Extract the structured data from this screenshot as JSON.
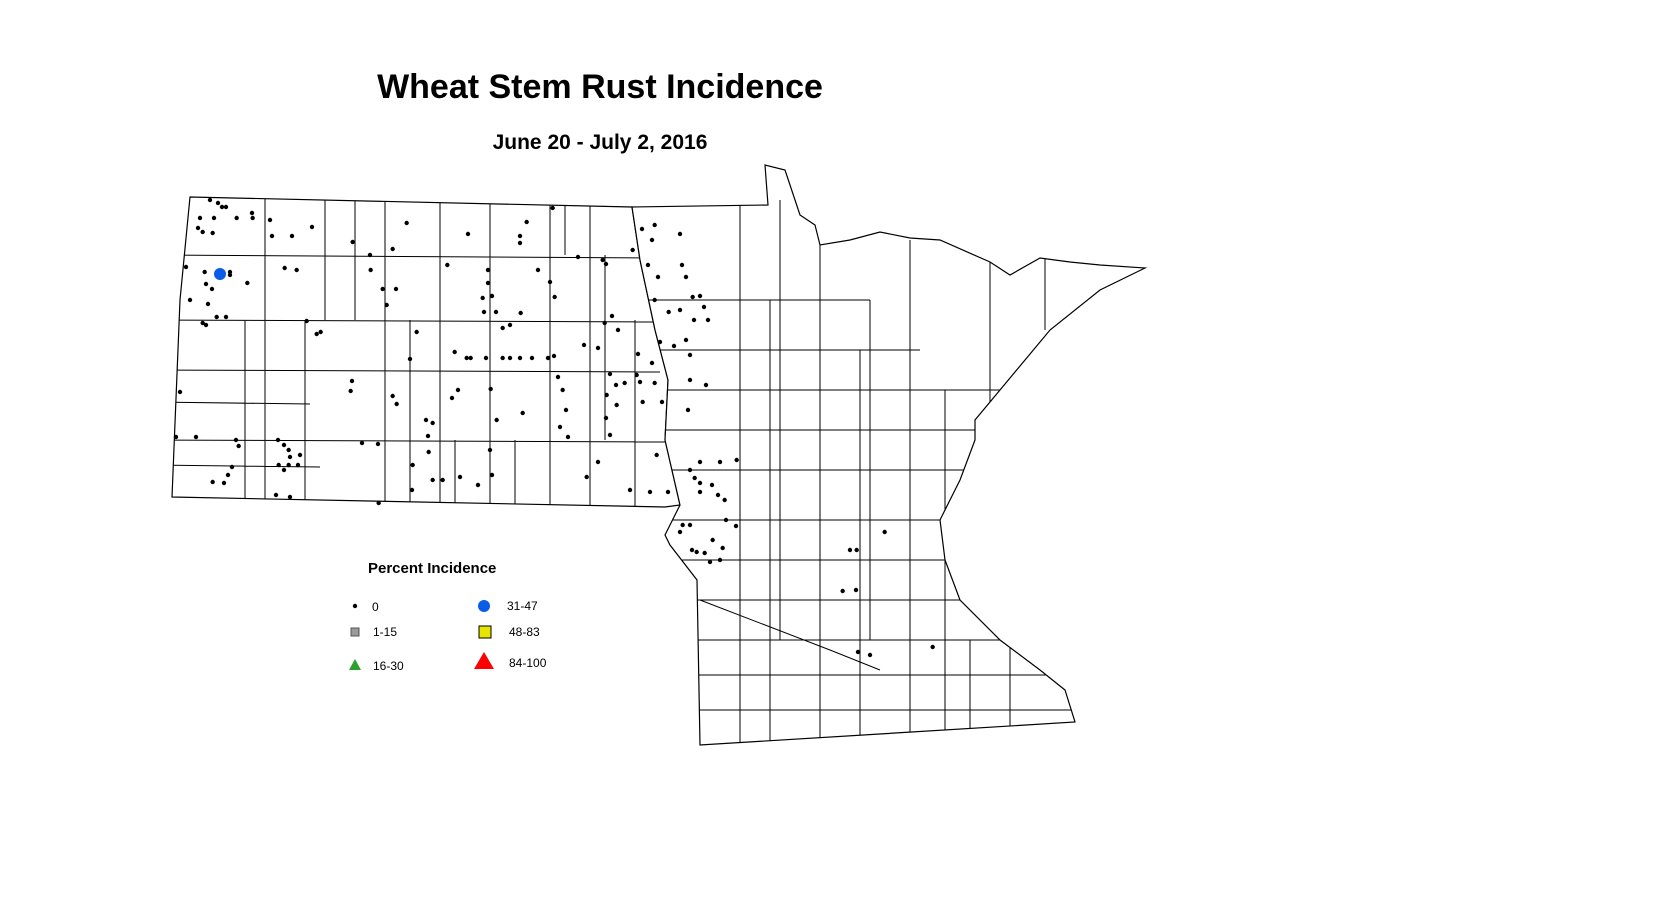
{
  "title": "Wheat Stem Rust Incidence",
  "subtitle": "June 20 - July 2, 2016",
  "legend": {
    "title": "Percent Incidence",
    "items": [
      {
        "label": "0",
        "symbol": "small-dot",
        "color": "#000000"
      },
      {
        "label": "1-15",
        "symbol": "square",
        "color": "#9a9a9a"
      },
      {
        "label": "16-30",
        "symbol": "triangle",
        "color": "#2ca02c"
      },
      {
        "label": "31-47",
        "symbol": "circle",
        "color": "#0a5ce6"
      },
      {
        "label": "48-83",
        "symbol": "square",
        "color": "#e6e600"
      },
      {
        "label": "84-100",
        "symbol": "triangle",
        "color": "#ff0000"
      }
    ]
  },
  "map": {
    "region": "North Dakota and Minnesota counties",
    "observations_0": [
      [
        -103.55,
        49.0
      ],
      [
        -103.43,
        48.97
      ],
      [
        -103.37,
        48.93
      ],
      [
        -103.31,
        48.93
      ],
      [
        -103.7,
        48.82
      ],
      [
        -103.49,
        48.82
      ],
      [
        -103.73,
        48.72
      ],
      [
        -103.66,
        48.68
      ],
      [
        -103.51,
        48.67
      ],
      [
        -103.15,
        48.82
      ],
      [
        -102.92,
        48.87
      ],
      [
        -102.91,
        48.82
      ],
      [
        -102.65,
        48.8
      ],
      [
        -102.62,
        48.64
      ],
      [
        -102.32,
        48.64
      ],
      [
        -102.02,
        48.73
      ],
      [
        -103.91,
        48.33
      ],
      [
        -103.63,
        48.28
      ],
      [
        -103.61,
        48.16
      ],
      [
        -103.52,
        48.11
      ],
      [
        -103.25,
        48.28
      ],
      [
        -102.99,
        48.17
      ],
      [
        -102.43,
        48.32
      ],
      [
        -102.25,
        48.3
      ],
      [
        -103.85,
        48.0
      ],
      [
        -103.58,
        47.96
      ],
      [
        -103.45,
        47.83
      ],
      [
        -103.31,
        47.83
      ],
      [
        -103.66,
        47.77
      ],
      [
        -103.61,
        47.75
      ],
      [
        -104.0,
        47.08
      ],
      [
        -104.06,
        46.63
      ],
      [
        -103.76,
        46.63
      ],
      [
        -103.16,
        46.6
      ],
      [
        -103.12,
        46.54
      ],
      [
        -103.22,
        46.33
      ],
      [
        -103.28,
        46.25
      ],
      [
        -103.34,
        46.17
      ],
      [
        -103.51,
        46.18
      ],
      [
        -102.53,
        46.6
      ],
      [
        -102.44,
        46.55
      ],
      [
        -102.37,
        46.5
      ],
      [
        -102.35,
        46.43
      ],
      [
        -102.2,
        46.45
      ],
      [
        -102.23,
        46.35
      ],
      [
        -102.37,
        46.35
      ],
      [
        -102.52,
        46.35
      ],
      [
        -102.44,
        46.3
      ],
      [
        -102.56,
        46.05
      ],
      [
        -102.35,
        46.03
      ],
      [
        -102.1,
        47.79
      ],
      [
        -101.95,
        47.66
      ],
      [
        -101.89,
        47.68
      ],
      [
        -101.41,
        48.58
      ],
      [
        -101.15,
        48.45
      ],
      [
        -101.14,
        48.3
      ],
      [
        -100.81,
        48.51
      ],
      [
        -100.6,
        48.77
      ],
      [
        -100.96,
        48.11
      ],
      [
        -100.76,
        48.11
      ],
      [
        -100.9,
        47.95
      ],
      [
        -99.68,
        48.66
      ],
      [
        -99.99,
        48.35
      ],
      [
        -99.38,
        48.3
      ],
      [
        -99.38,
        48.17
      ],
      [
        -99.46,
        48.02
      ],
      [
        -99.32,
        48.04
      ],
      [
        -99.26,
        47.88
      ],
      [
        -99.44,
        47.88
      ],
      [
        -98.9,
        48.64
      ],
      [
        -98.9,
        48.57
      ],
      [
        -98.8,
        48.78
      ],
      [
        -98.41,
        48.92
      ],
      [
        -98.63,
        48.3
      ],
      [
        -98.45,
        48.18
      ],
      [
        -98.38,
        48.03
      ],
      [
        -99.05,
        47.75
      ],
      [
        -98.89,
        47.87
      ],
      [
        -99.16,
        47.72
      ],
      [
        -100.45,
        47.68
      ],
      [
        -100.55,
        47.41
      ],
      [
        -99.88,
        47.48
      ],
      [
        -99.7,
        47.42
      ],
      [
        -99.64,
        47.42
      ],
      [
        -99.41,
        47.42
      ],
      [
        -99.16,
        47.42
      ],
      [
        -99.05,
        47.42
      ],
      [
        -98.9,
        47.42
      ],
      [
        -98.72,
        47.42
      ],
      [
        -98.48,
        47.42
      ],
      [
        -101.42,
        47.19
      ],
      [
        -101.44,
        47.09
      ],
      [
        -101.27,
        46.57
      ],
      [
        -101.03,
        46.56
      ],
      [
        -100.81,
        47.04
      ],
      [
        -100.75,
        46.96
      ],
      [
        -100.31,
        46.8
      ],
      [
        -100.21,
        46.77
      ],
      [
        -100.28,
        46.64
      ],
      [
        -99.83,
        47.1
      ],
      [
        -99.92,
        47.02
      ],
      [
        -99.34,
        47.11
      ],
      [
        -99.25,
        46.8
      ],
      [
        -99.35,
        46.5
      ],
      [
        -98.86,
        46.87
      ],
      [
        -98.39,
        47.44
      ],
      [
        -98.33,
        47.23
      ],
      [
        -98.26,
        47.1
      ],
      [
        -98.21,
        46.9
      ],
      [
        -98.3,
        46.73
      ],
      [
        -98.18,
        46.63
      ],
      [
        -97.94,
        47.55
      ],
      [
        -97.73,
        47.52
      ],
      [
        -97.55,
        47.26
      ],
      [
        -97.46,
        47.15
      ],
      [
        -97.6,
        47.05
      ],
      [
        -97.45,
        46.95
      ],
      [
        -97.61,
        46.82
      ],
      [
        -97.55,
        46.65
      ],
      [
        -97.73,
        46.38
      ],
      [
        -97.15,
        47.25
      ],
      [
        -97.1,
        47.18
      ],
      [
        -97.06,
        46.98
      ],
      [
        -96.77,
        46.98
      ],
      [
        -96.88,
        47.17
      ],
      [
        -96.92,
        47.37
      ],
      [
        -96.8,
        47.58
      ],
      [
        -97.13,
        47.46
      ],
      [
        -97.33,
        47.17
      ],
      [
        -97.52,
        47.84
      ],
      [
        -97.43,
        47.7
      ],
      [
        -97.63,
        47.77
      ],
      [
        -97.61,
        48.36
      ],
      [
        -98.03,
        48.43
      ],
      [
        -97.07,
        48.71
      ],
      [
        -96.92,
        48.6
      ],
      [
        -96.88,
        48.75
      ],
      [
        -96.5,
        48.66
      ],
      [
        -96.98,
        48.35
      ],
      [
        -96.83,
        48.23
      ],
      [
        -96.47,
        48.35
      ],
      [
        -96.41,
        48.23
      ],
      [
        -96.88,
        48.0
      ],
      [
        -96.67,
        47.88
      ],
      [
        -96.5,
        47.9
      ],
      [
        -96.31,
        48.03
      ],
      [
        -96.2,
        48.04
      ],
      [
        -96.14,
        47.93
      ],
      [
        -96.29,
        47.8
      ],
      [
        -96.08,
        47.8
      ],
      [
        -96.41,
        47.6
      ],
      [
        -96.59,
        47.54
      ],
      [
        -96.35,
        47.45
      ],
      [
        -96.35,
        47.2
      ],
      [
        -96.11,
        47.15
      ],
      [
        -96.38,
        46.9
      ],
      [
        -96.85,
        46.45
      ],
      [
        -96.68,
        46.08
      ],
      [
        -96.95,
        46.08
      ],
      [
        -97.25,
        46.1
      ],
      [
        -96.2,
        46.38
      ],
      [
        -95.9,
        46.38
      ],
      [
        -95.65,
        46.4
      ],
      [
        -96.35,
        46.3
      ],
      [
        -96.28,
        46.22
      ],
      [
        -96.2,
        46.17
      ],
      [
        -96.2,
        46.08
      ],
      [
        -96.02,
        46.15
      ],
      [
        -95.93,
        46.05
      ],
      [
        -95.81,
        45.8
      ],
      [
        -95.66,
        45.74
      ],
      [
        -95.83,
        46.0
      ],
      [
        -96.35,
        45.75
      ],
      [
        -96.32,
        45.5
      ],
      [
        -96.25,
        45.48
      ],
      [
        -96.13,
        45.47
      ],
      [
        -95.9,
        45.4
      ],
      [
        -96.05,
        45.38
      ],
      [
        -95.86,
        45.52
      ],
      [
        -96.01,
        45.6
      ],
      [
        -96.46,
        45.75
      ],
      [
        -96.5,
        45.68
      ],
      [
        -97.66,
        48.4
      ],
      [
        -97.21,
        48.5
      ],
      [
        -100.21,
        46.2
      ],
      [
        -100.06,
        46.2
      ],
      [
        -99.8,
        46.23
      ],
      [
        -99.53,
        46.15
      ],
      [
        -99.32,
        46.25
      ],
      [
        -101.02,
        45.97
      ],
      [
        -100.51,
        46.35
      ],
      [
        -100.52,
        46.1
      ],
      [
        -100.27,
        46.48
      ],
      [
        -93.95,
        45.5
      ],
      [
        -93.85,
        45.5
      ],
      [
        -93.43,
        45.68
      ],
      [
        -94.06,
        45.09
      ],
      [
        -93.86,
        45.1
      ],
      [
        -93.83,
        44.48
      ],
      [
        -93.65,
        44.45
      ],
      [
        -92.71,
        44.53
      ],
      [
        -97.9,
        46.23
      ],
      [
        -103.25,
        48.25
      ]
    ],
    "observations_31_47": [
      [
        -103.4,
        48.26
      ]
    ]
  }
}
